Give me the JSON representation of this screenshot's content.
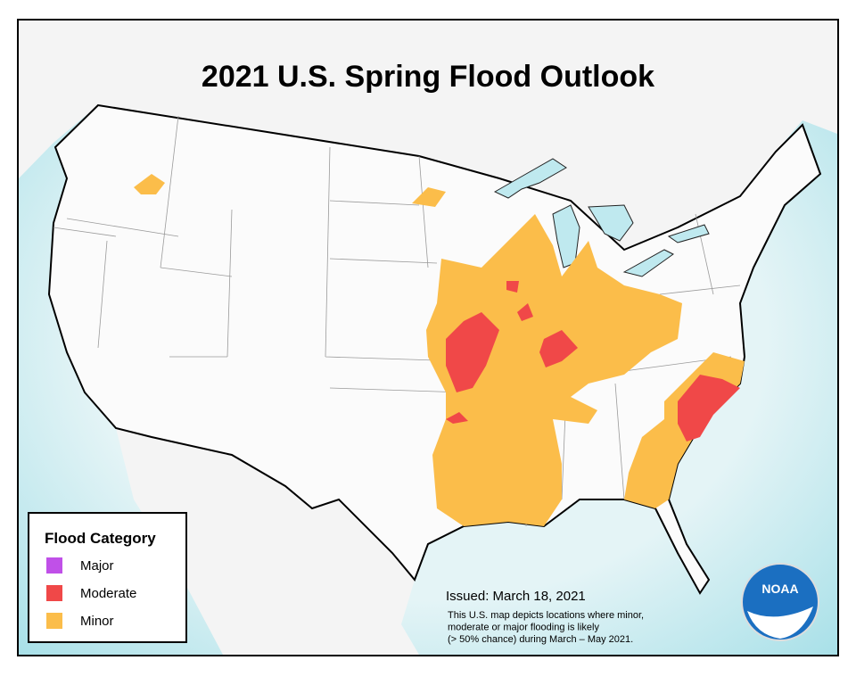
{
  "title": "2021 U.S. Spring Flood Outlook",
  "legend": {
    "title": "Flood Category",
    "items": [
      {
        "label": "Major",
        "color": "#c050e8"
      },
      {
        "label": "Moderate",
        "color": "#f04848"
      },
      {
        "label": "Minor",
        "color": "#fbbd4a"
      }
    ]
  },
  "issued": "Issued:  March 18, 2021",
  "note": [
    "This U.S. map depicts locations where minor,",
    "moderate or major flooding is likely",
    "(> 50% chance) during March – May  2021."
  ],
  "logo": "NOAA"
}
